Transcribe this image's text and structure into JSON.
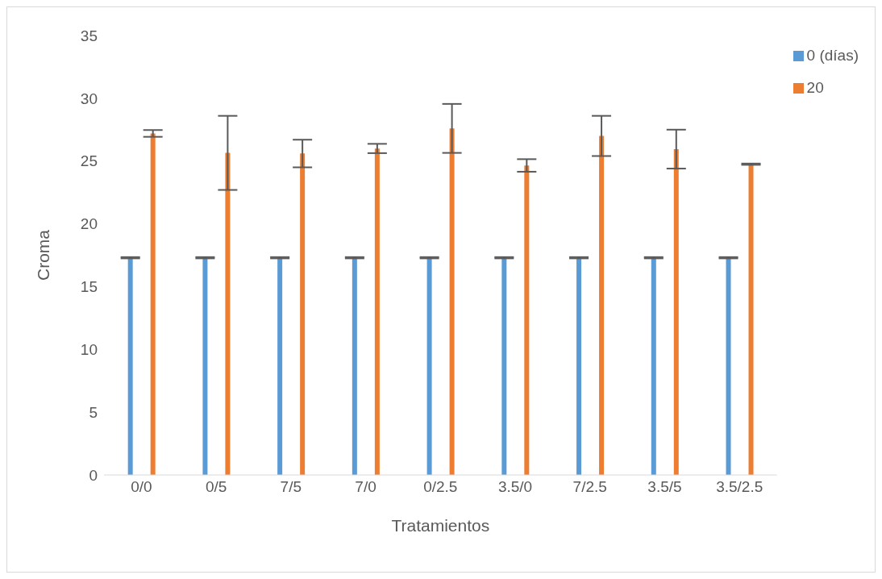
{
  "chart_data": {
    "type": "bar",
    "xlabel": "Tratamientos",
    "ylabel": "Croma",
    "categories": [
      "0/0",
      "0/5",
      "7/5",
      "7/0",
      "0/2.5",
      "3.5/0",
      "7/2.5",
      "3.5/5",
      "3.5/2.5"
    ],
    "series": [
      {
        "name": "0 (días)",
        "color": "#5b9bd5",
        "values": [
          17.3,
          17.3,
          17.3,
          17.3,
          17.3,
          17.3,
          17.3,
          17.3,
          17.3
        ],
        "errors": [
          0.05,
          0.05,
          0.05,
          0.05,
          0.05,
          0.05,
          0.05,
          0.05,
          0.05
        ]
      },
      {
        "name": "20",
        "color": "#ed7d31",
        "values": [
          27.2,
          25.65,
          25.6,
          26.0,
          27.6,
          24.65,
          27.0,
          25.95,
          24.75
        ],
        "errors": [
          0.27,
          2.95,
          1.1,
          0.37,
          1.95,
          0.5,
          1.6,
          1.55,
          0.05
        ]
      }
    ],
    "ylim": [
      0,
      35
    ],
    "yticks": [
      0,
      5,
      10,
      15,
      20,
      25,
      30,
      35
    ],
    "grid": false,
    "legend": "top right"
  }
}
